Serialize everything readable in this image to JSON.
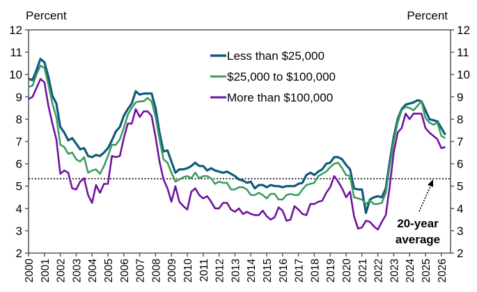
{
  "chart_data": {
    "type": "line",
    "ylabel_left": "Percent",
    "ylabel_right": "Percent",
    "ylim": [
      2,
      12
    ],
    "yticks": [
      2,
      3,
      4,
      5,
      6,
      7,
      8,
      9,
      10,
      11,
      12
    ],
    "xticks": [
      "2000",
      "2001",
      "2002",
      "2003",
      "2004",
      "2005",
      "2006",
      "2007",
      "2008",
      "2009",
      "2010",
      "2011",
      "2012",
      "2013",
      "2014",
      "2015",
      "2016",
      "2017",
      "2018",
      "2019",
      "2020",
      "2021",
      "2022",
      "2023",
      "2024",
      "2025",
      "2026"
    ],
    "x_start": 2000,
    "x_step": 0.25,
    "grid": false,
    "legend_position": "top-center",
    "reference_line": {
      "value": 5.33,
      "label_line1": "20-year",
      "label_line2": "average",
      "style": "dotted"
    },
    "series": [
      {
        "name": "Less than $25,000",
        "color": "#0e5a7a",
        "values": [
          9.8,
          9.75,
          10.2,
          10.7,
          10.55,
          9.9,
          9.05,
          8.7,
          7.65,
          7.4,
          7.05,
          7.15,
          6.9,
          6.65,
          6.7,
          6.35,
          6.3,
          6.4,
          6.35,
          6.5,
          6.7,
          7.05,
          7.45,
          7.65,
          8.15,
          8.45,
          8.7,
          9.25,
          9.1,
          9.15,
          9.15,
          9.15,
          8.5,
          7.4,
          6.55,
          6.6,
          6.1,
          5.6,
          5.75,
          5.75,
          5.8,
          5.9,
          6.05,
          5.9,
          5.9,
          5.7,
          5.8,
          5.7,
          5.65,
          5.6,
          5.65,
          5.55,
          5.45,
          5.3,
          5.25,
          5.15,
          5.2,
          4.9,
          5.05,
          5.05,
          4.95,
          5.05,
          5.0,
          5.0,
          4.95,
          5.0,
          5.0,
          5.0,
          5.1,
          5.15,
          5.5,
          5.6,
          5.5,
          5.65,
          5.75,
          6.0,
          6.05,
          6.3,
          6.3,
          6.2,
          5.95,
          5.75,
          4.9,
          4.85,
          4.85,
          3.8,
          4.4,
          4.5,
          4.55,
          4.5,
          4.9,
          6.1,
          7.2,
          8.0,
          8.45,
          8.65,
          8.7,
          8.75,
          8.85,
          8.8,
          8.4,
          8.0,
          7.95,
          7.9,
          7.6,
          7.3
        ]
      },
      {
        "name": "$25,000 to $100,000",
        "color": "#3d9b5f",
        "values": [
          9.45,
          9.5,
          10.0,
          10.4,
          10.3,
          9.55,
          8.7,
          8.1,
          6.85,
          6.75,
          6.45,
          6.5,
          6.2,
          6.1,
          6.3,
          5.6,
          5.7,
          5.75,
          5.55,
          5.9,
          6.35,
          6.85,
          6.85,
          7.1,
          7.6,
          8.2,
          8.5,
          8.75,
          8.8,
          8.8,
          8.95,
          8.8,
          8.1,
          7.1,
          6.2,
          6.05,
          5.6,
          5.2,
          5.3,
          5.4,
          5.45,
          5.35,
          5.6,
          5.35,
          5.45,
          5.45,
          5.35,
          5.1,
          5.2,
          5.15,
          5.15,
          4.85,
          4.85,
          4.95,
          4.95,
          4.85,
          4.6,
          4.6,
          4.7,
          4.6,
          4.45,
          4.65,
          4.65,
          4.4,
          4.4,
          4.6,
          4.65,
          4.6,
          4.6,
          4.85,
          5.05,
          5.1,
          5.15,
          5.45,
          5.55,
          5.65,
          5.85,
          6.0,
          6.05,
          5.8,
          5.5,
          5.45,
          4.5,
          4.45,
          4.4,
          4.2,
          4.35,
          4.2,
          4.2,
          4.25,
          4.7,
          5.9,
          7.0,
          7.85,
          8.4,
          8.55,
          8.5,
          8.4,
          8.6,
          8.8,
          8.05,
          7.85,
          7.75,
          7.85,
          7.25,
          7.15
        ]
      },
      {
        "name": "More than $100,000",
        "color": "#7012a0",
        "values": [
          8.9,
          9.0,
          9.4,
          9.8,
          9.65,
          8.6,
          7.8,
          7.1,
          5.55,
          5.7,
          5.6,
          4.9,
          4.85,
          5.2,
          5.35,
          4.6,
          4.25,
          5.05,
          4.7,
          5.1,
          5.1,
          6.35,
          6.3,
          6.35,
          7.15,
          7.8,
          7.8,
          8.45,
          8.1,
          8.35,
          8.35,
          8.15,
          7.2,
          6.1,
          5.3,
          4.9,
          4.3,
          5.0,
          4.3,
          4.1,
          3.95,
          4.75,
          4.9,
          4.6,
          4.45,
          4.55,
          4.3,
          4.0,
          4.0,
          4.25,
          4.25,
          3.95,
          3.85,
          4.0,
          3.75,
          3.85,
          3.75,
          3.7,
          3.7,
          3.9,
          3.65,
          3.5,
          3.6,
          4.05,
          3.9,
          3.45,
          3.5,
          4.1,
          3.95,
          3.75,
          3.7,
          4.2,
          4.2,
          4.3,
          4.35,
          4.7,
          4.95,
          5.45,
          5.2,
          4.9,
          4.5,
          4.75,
          3.65,
          3.1,
          3.15,
          3.45,
          3.4,
          3.2,
          3.05,
          3.4,
          3.7,
          5.0,
          6.5,
          7.4,
          7.6,
          8.25,
          8.0,
          8.25,
          8.25,
          8.25,
          7.6,
          7.4,
          7.25,
          7.1,
          6.7,
          6.75
        ]
      }
    ]
  }
}
